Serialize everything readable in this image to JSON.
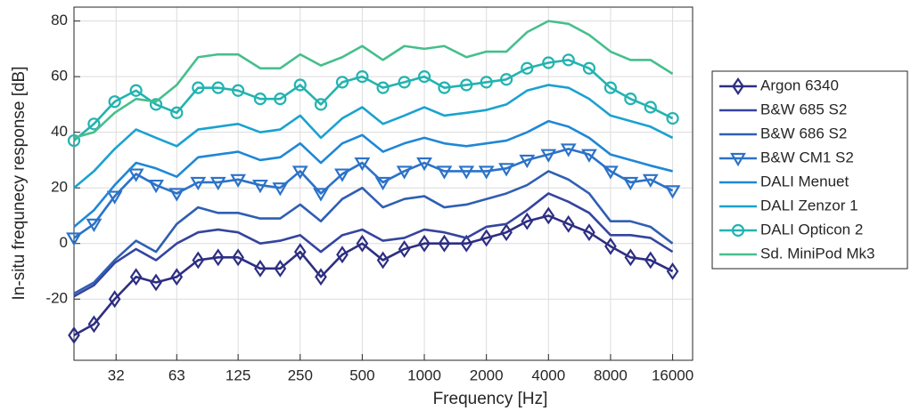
{
  "chart_data": {
    "type": "line",
    "xlabel": "Frequency [Hz]",
    "ylabel": "In-situ frequnecy response [dB]",
    "xscale": "log",
    "x": [
      20,
      25,
      31.5,
      40,
      50,
      63,
      80,
      100,
      125,
      160,
      200,
      250,
      315,
      400,
      500,
      630,
      800,
      1000,
      1250,
      1600,
      2000,
      2500,
      3150,
      4000,
      5000,
      6300,
      8000,
      10000,
      12500,
      16000
    ],
    "xlim": [
      20,
      20000
    ],
    "xticks": [
      32,
      63,
      125,
      250,
      500,
      1000,
      2000,
      4000,
      8000,
      16000
    ],
    "ylim": [
      -42,
      85
    ],
    "yticks": [
      -20,
      0,
      20,
      40,
      60,
      80
    ],
    "grid": true,
    "legend": "outside right",
    "series": [
      {
        "name": "Argon 6340",
        "color": "#2d2e82",
        "marker": "diamond",
        "values": [
          -33,
          -29,
          -20,
          -12,
          -14,
          -12,
          -6,
          -5,
          -5,
          -9,
          -9,
          -3,
          -12,
          -4,
          0,
          -6,
          -2,
          0,
          0,
          0,
          2,
          4,
          8,
          10,
          7,
          4,
          -1,
          -5,
          -6,
          -10
        ]
      },
      {
        "name": "B&W 685 S2",
        "color": "#35449e",
        "values": [
          -19,
          -15,
          -7,
          -2,
          -6,
          0,
          4,
          5,
          4,
          0,
          1,
          3,
          -3,
          3,
          5,
          1,
          2,
          5,
          4,
          2,
          6,
          7,
          12,
          18,
          15,
          11,
          3,
          3,
          2,
          -3
        ]
      },
      {
        "name": "B&W 686 S2",
        "color": "#2f5fb3",
        "values": [
          -18,
          -14,
          -6,
          1,
          -3,
          7,
          13,
          11,
          11,
          9,
          9,
          14,
          8,
          16,
          20,
          13,
          16,
          17,
          13,
          14,
          16,
          18,
          21,
          26,
          23,
          18,
          8,
          8,
          6,
          0
        ]
      },
      {
        "name": "B&W CM1 S2",
        "color": "#2b72c8",
        "marker": "triangle-down",
        "values": [
          2,
          7,
          17,
          25,
          21,
          18,
          22,
          22,
          23,
          21,
          20,
          26,
          18,
          25,
          29,
          22,
          26,
          29,
          26,
          26,
          26,
          27,
          30,
          32,
          34,
          32,
          26,
          22,
          23,
          19
        ]
      },
      {
        "name": "DALI Menuet",
        "color": "#1f87d6",
        "values": [
          6,
          12,
          21,
          29,
          27,
          24,
          31,
          32,
          33,
          30,
          31,
          36,
          29,
          36,
          39,
          33,
          36,
          38,
          36,
          35,
          36,
          37,
          40,
          44,
          42,
          38,
          32,
          30,
          28,
          26
        ]
      },
      {
        "name": "DALI Zenzor 1",
        "color": "#1aa2d0",
        "values": [
          20,
          26,
          34,
          41,
          38,
          35,
          41,
          42,
          43,
          40,
          41,
          46,
          38,
          45,
          49,
          43,
          46,
          49,
          46,
          47,
          48,
          50,
          55,
          57,
          56,
          52,
          46,
          44,
          42,
          38
        ]
      },
      {
        "name": "DALI Opticon 2",
        "color": "#22b3b0",
        "marker": "circle",
        "values": [
          37,
          43,
          51,
          55,
          50,
          47,
          56,
          56,
          55,
          52,
          52,
          57,
          50,
          58,
          60,
          56,
          58,
          60,
          56,
          57,
          58,
          59,
          63,
          65,
          66,
          63,
          56,
          52,
          49,
          45
        ]
      },
      {
        "name": "Sd. MiniPod Mk3",
        "color": "#45bf8c",
        "values": [
          38,
          40,
          47,
          52,
          51,
          57,
          67,
          68,
          68,
          63,
          63,
          68,
          64,
          67,
          71,
          66,
          71,
          70,
          71,
          67,
          69,
          69,
          76,
          80,
          79,
          75,
          69,
          66,
          66,
          61
        ]
      }
    ]
  }
}
